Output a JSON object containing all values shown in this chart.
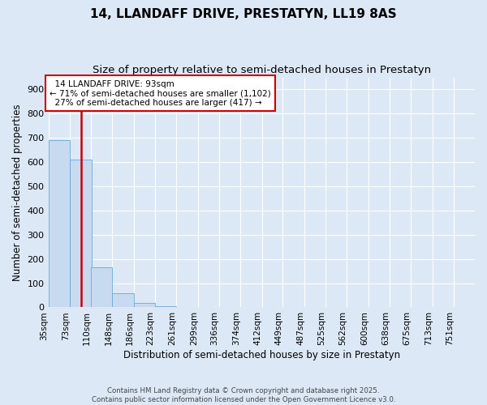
{
  "title_line1": "14, LLANDAFF DRIVE, PRESTATYN, LL19 8AS",
  "title_line2": "Size of property relative to semi-detached houses in Prestatyn",
  "xlabel": "Distribution of semi-detached houses by size in Prestatyn",
  "ylabel": "Number of semi-detached properties",
  "footnote": "Contains HM Land Registry data © Crown copyright and database right 2025.\nContains public sector information licensed under the Open Government Licence v3.0.",
  "bar_edges": [
    35,
    73,
    110,
    148,
    186,
    223,
    261,
    299,
    336,
    374,
    412,
    449,
    487,
    525,
    562,
    600,
    638,
    675,
    713,
    751,
    788
  ],
  "bar_heights": [
    690,
    610,
    165,
    58,
    18,
    5,
    0,
    0,
    0,
    0,
    0,
    0,
    0,
    0,
    0,
    0,
    0,
    0,
    0,
    0
  ],
  "bar_color": "#c8daf0",
  "bar_edge_color": "#6aaad4",
  "property_size": 93,
  "property_label": "14 LLANDAFF DRIVE: 93sqm",
  "pct_smaller": 71,
  "pct_smaller_n": 1102,
  "pct_larger": 27,
  "pct_larger_n": 417,
  "vline_color": "#cc0000",
  "annotation_box_color": "#cc0000",
  "ylim": [
    0,
    950
  ],
  "yticks": [
    0,
    100,
    200,
    300,
    400,
    500,
    600,
    700,
    800,
    900
  ],
  "bg_color": "#dce8f5",
  "plot_bg_color": "#dce8f5",
  "grid_color": "#ffffff",
  "title_fontsize": 11,
  "subtitle_fontsize": 9.5,
  "axis_label_fontsize": 8.5,
  "tick_fontsize": 7.5,
  "annot_fontsize": 7.5
}
